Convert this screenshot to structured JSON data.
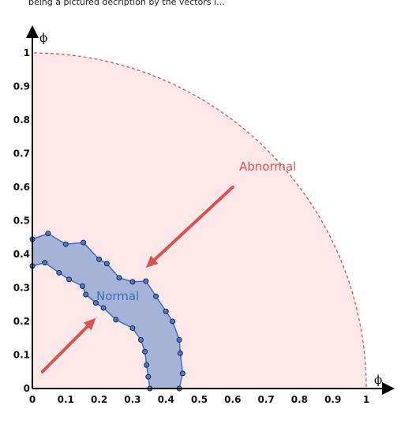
{
  "partial_top_text": "being a pictured decription by the vectors l…",
  "chart_data": {
    "type": "area",
    "xlabel": "ϕ",
    "ylabel": "ϕ",
    "xlim": [
      0,
      1
    ],
    "ylim": [
      0,
      1
    ],
    "x_ticks": [
      "0",
      "0.1",
      "0.2",
      "0.3",
      "0.4",
      "0.5",
      "0.6",
      "0.7",
      "0.8",
      "0.9",
      "1"
    ],
    "y_ticks": [
      "0",
      "0.1",
      "0.2",
      "0.3",
      "0.4",
      "0.5",
      "0.6",
      "0.7",
      "0.8",
      "0.9",
      "1"
    ],
    "grid": false,
    "abnormal_region": {
      "label": "Abnormal",
      "shape": "quarter-circle",
      "radius": 1,
      "fill_color": "#fce8e8",
      "boundary_color": "#d9534f",
      "arrow": {
        "from": [
          0.6,
          0.6
        ],
        "to": [
          0.34,
          0.36
        ]
      }
    },
    "normal_region": {
      "label": "Normal",
      "fill_color": "#a5b4d6",
      "edge_color": "#3a6fc4",
      "arrow": {
        "from": [
          0.03,
          0.05
        ],
        "to": [
          0.19,
          0.21
        ]
      },
      "boundary_points": [
        [
          0.0,
          0.445
        ],
        [
          0.047,
          0.462
        ],
        [
          0.1,
          0.43
        ],
        [
          0.153,
          0.435
        ],
        [
          0.2,
          0.385
        ],
        [
          0.223,
          0.372
        ],
        [
          0.26,
          0.33
        ],
        [
          0.3,
          0.318
        ],
        [
          0.34,
          0.32
        ],
        [
          0.37,
          0.275
        ],
        [
          0.4,
          0.23
        ],
        [
          0.42,
          0.2
        ],
        [
          0.44,
          0.145
        ],
        [
          0.443,
          0.105
        ],
        [
          0.45,
          0.045
        ],
        [
          0.44,
          0.0
        ],
        [
          0.352,
          0.0
        ],
        [
          0.347,
          0.035
        ],
        [
          0.342,
          0.07
        ],
        [
          0.337,
          0.11
        ],
        [
          0.325,
          0.145
        ],
        [
          0.3,
          0.18
        ],
        [
          0.25,
          0.205
        ],
        [
          0.213,
          0.24
        ],
        [
          0.19,
          0.255
        ],
        [
          0.16,
          0.28
        ],
        [
          0.15,
          0.305
        ],
        [
          0.11,
          0.325
        ],
        [
          0.08,
          0.345
        ],
        [
          0.037,
          0.375
        ],
        [
          0.0,
          0.365
        ]
      ]
    }
  }
}
